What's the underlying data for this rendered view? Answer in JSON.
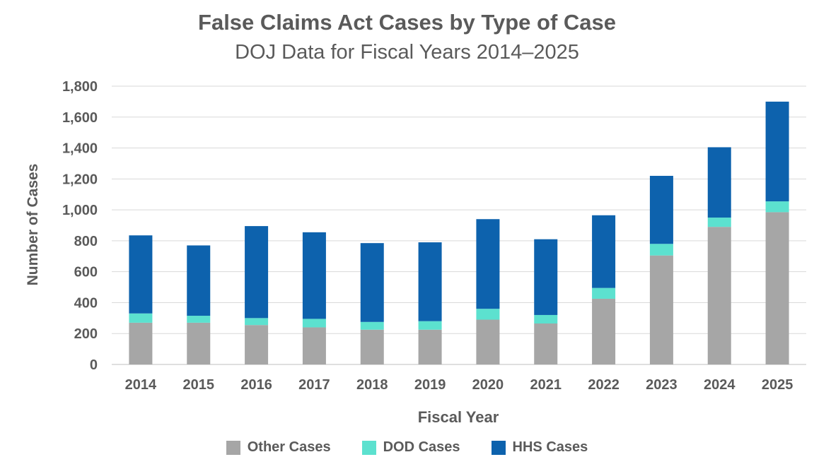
{
  "chart_data": {
    "type": "bar",
    "stacked": true,
    "title": "False Claims Act Cases by Type of Case",
    "subtitle": "DOJ Data for Fiscal Years 2014–2025",
    "xlabel": "Fiscal Year",
    "ylabel": "Number of Cases",
    "ylim": [
      0,
      1800
    ],
    "yticks": [
      0,
      200,
      400,
      600,
      800,
      1000,
      1200,
      1400,
      1600,
      1800
    ],
    "ytick_labels": [
      "0",
      "200",
      "400",
      "600",
      "800",
      "1,000",
      "1,200",
      "1,400",
      "1,600",
      "1,800"
    ],
    "grid": true,
    "legend_position": "bottom",
    "categories": [
      "2014",
      "2015",
      "2016",
      "2017",
      "2018",
      "2019",
      "2020",
      "2021",
      "2022",
      "2023",
      "2024",
      "2025"
    ],
    "series": [
      {
        "name": "Other Cases",
        "color": "#a6a6a6",
        "values": [
          270,
          270,
          255,
          240,
          225,
          225,
          290,
          265,
          425,
          705,
          890,
          985
        ]
      },
      {
        "name": "DOD Cases",
        "color": "#5ce1cf",
        "values": [
          60,
          45,
          45,
          55,
          50,
          55,
          70,
          55,
          70,
          75,
          60,
          70
        ]
      },
      {
        "name": "HHS Cases",
        "color": "#0d62ad",
        "values": [
          505,
          455,
          595,
          560,
          510,
          510,
          580,
          490,
          470,
          440,
          455,
          645
        ]
      }
    ]
  }
}
